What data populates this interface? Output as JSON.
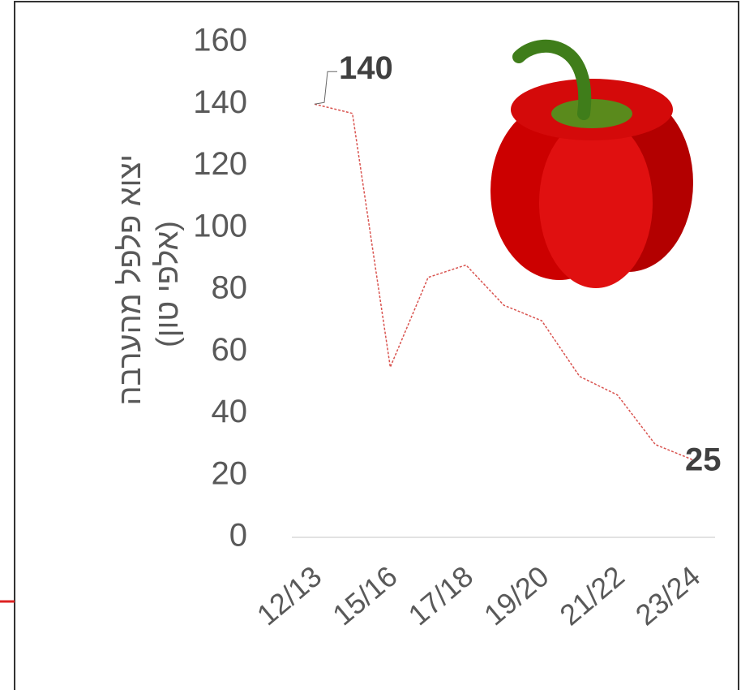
{
  "chart_data": {
    "type": "line",
    "y_label": [
      "יצוא פלפל מהערבה",
      "(אלפי טון)"
    ],
    "categories": [
      "12/13",
      null,
      "15/16",
      null,
      "17/18",
      null,
      "19/20",
      null,
      "21/22",
      null,
      "23/24"
    ],
    "series": [
      {
        "color": "#d9534f",
        "values": [
          140,
          137,
          55,
          84,
          88,
          75,
          70,
          52,
          46,
          30,
          25
        ]
      }
    ],
    "data_labels": [
      0,
      10
    ],
    "ylim": [
      0,
      160
    ],
    "yticks": [
      0,
      20,
      40,
      60,
      80,
      100,
      120,
      140,
      160
    ]
  }
}
